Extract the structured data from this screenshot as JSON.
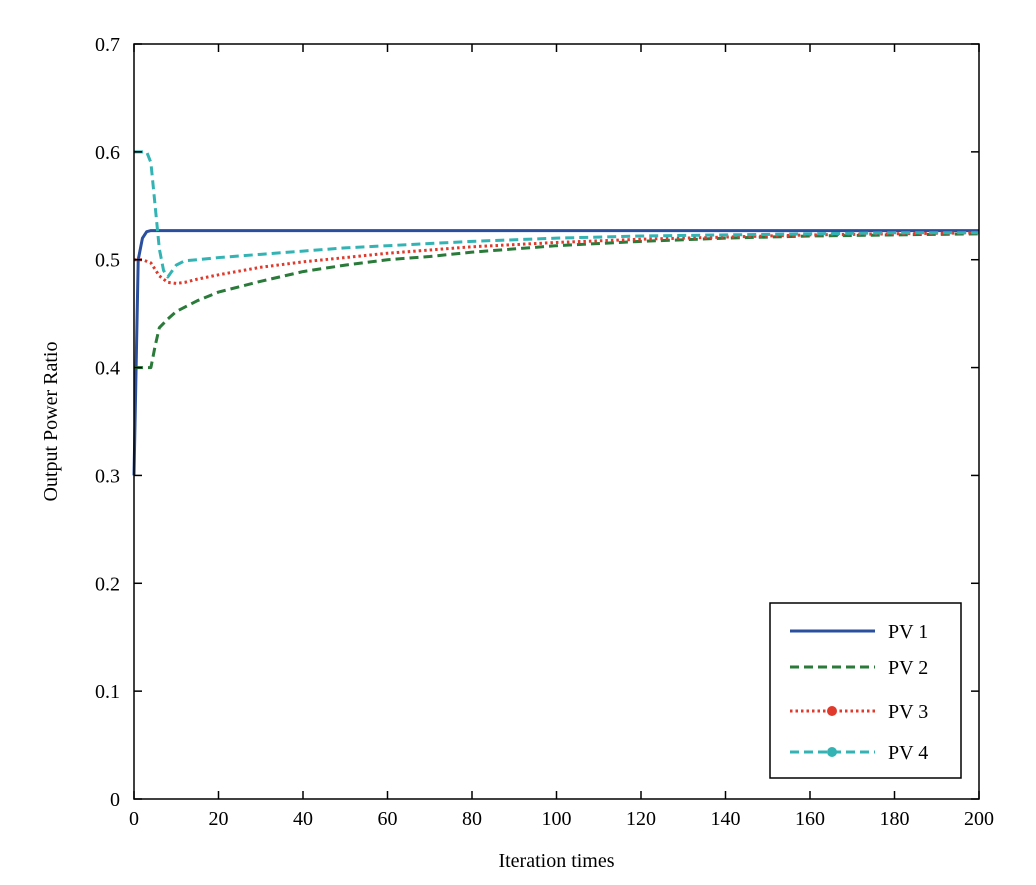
{
  "chart_data": {
    "type": "line",
    "xlabel": "Iteration times",
    "ylabel": "Output Power Ratio",
    "xlim": [
      0,
      200
    ],
    "ylim": [
      0,
      0.7
    ],
    "xticks": [
      "0",
      "20",
      "40",
      "60",
      "80",
      "100",
      "120",
      "140",
      "160",
      "180",
      "200"
    ],
    "yticks": [
      "0",
      "0.1",
      "0.2",
      "0.3",
      "0.4",
      "0.5",
      "0.6",
      "0.7"
    ],
    "grid": false,
    "legend_position": "bottom-right",
    "series": [
      {
        "name": "PV 1",
        "color": "#2a4f9e",
        "style": "solid",
        "points": [
          [
            0,
            0.3
          ],
          [
            1,
            0.5
          ],
          [
            2,
            0.52
          ],
          [
            3,
            0.526
          ],
          [
            4,
            0.527
          ],
          [
            200,
            0.527
          ]
        ]
      },
      {
        "name": "PV 2",
        "color": "#2a7a3a",
        "style": "dashed",
        "points": [
          [
            0,
            0.4
          ],
          [
            4,
            0.4
          ],
          [
            5,
            0.42
          ],
          [
            6,
            0.437
          ],
          [
            8,
            0.445
          ],
          [
            10,
            0.452
          ],
          [
            15,
            0.462
          ],
          [
            20,
            0.47
          ],
          [
            25,
            0.475
          ],
          [
            30,
            0.48
          ],
          [
            40,
            0.489
          ],
          [
            50,
            0.495
          ],
          [
            60,
            0.5
          ],
          [
            70,
            0.503
          ],
          [
            80,
            0.507
          ],
          [
            90,
            0.51
          ],
          [
            100,
            0.513
          ],
          [
            120,
            0.517
          ],
          [
            140,
            0.52
          ],
          [
            160,
            0.522
          ],
          [
            180,
            0.523
          ],
          [
            200,
            0.524
          ]
        ]
      },
      {
        "name": "PV 3",
        "color": "#e03a2c",
        "style": "dotted",
        "points": [
          [
            0,
            0.5
          ],
          [
            2,
            0.5
          ],
          [
            4,
            0.497
          ],
          [
            6,
            0.485
          ],
          [
            8,
            0.479
          ],
          [
            10,
            0.478
          ],
          [
            12,
            0.479
          ],
          [
            15,
            0.482
          ],
          [
            20,
            0.486
          ],
          [
            30,
            0.493
          ],
          [
            40,
            0.498
          ],
          [
            50,
            0.502
          ],
          [
            60,
            0.506
          ],
          [
            70,
            0.509
          ],
          [
            80,
            0.512
          ],
          [
            90,
            0.514
          ],
          [
            100,
            0.516
          ],
          [
            120,
            0.519
          ],
          [
            140,
            0.521
          ],
          [
            160,
            0.523
          ],
          [
            180,
            0.524
          ],
          [
            200,
            0.525
          ]
        ]
      },
      {
        "name": "PV 4",
        "color": "#33b3b3",
        "style": "dashed",
        "points": [
          [
            0,
            0.6
          ],
          [
            3,
            0.6
          ],
          [
            4,
            0.59
          ],
          [
            5,
            0.55
          ],
          [
            6,
            0.51
          ],
          [
            7,
            0.49
          ],
          [
            8,
            0.484
          ],
          [
            10,
            0.495
          ],
          [
            12,
            0.499
          ],
          [
            15,
            0.5
          ],
          [
            20,
            0.502
          ],
          [
            30,
            0.505
          ],
          [
            40,
            0.508
          ],
          [
            50,
            0.511
          ],
          [
            60,
            0.513
          ],
          [
            70,
            0.515
          ],
          [
            80,
            0.517
          ],
          [
            100,
            0.52
          ],
          [
            120,
            0.522
          ],
          [
            140,
            0.523
          ],
          [
            160,
            0.524
          ],
          [
            180,
            0.525
          ],
          [
            200,
            0.525
          ]
        ]
      }
    ]
  }
}
